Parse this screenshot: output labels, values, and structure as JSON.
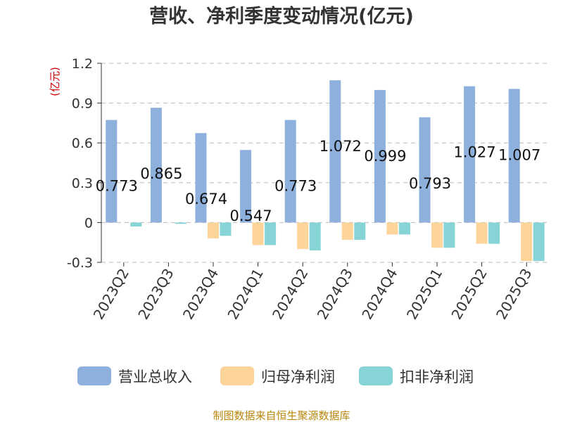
{
  "chart_data": {
    "type": "bar",
    "title": "营收、净利季度变动情况(亿元)",
    "unit_label": "(亿元)",
    "categories": [
      "2023Q2",
      "2023Q3",
      "2023Q4",
      "2024Q1",
      "2024Q2",
      "2024Q3",
      "2024Q4",
      "2025Q1",
      "2025Q2",
      "2025Q3"
    ],
    "ylim": [
      -0.3,
      1.2
    ],
    "yticks": [
      "1.2",
      "0.9",
      "0.6",
      "0.3",
      "0",
      "-0.3"
    ],
    "ytick_values": [
      1.2,
      0.9,
      0.6,
      0.3,
      0,
      -0.3
    ],
    "grid": true,
    "legend_position": "bottom",
    "series": [
      {
        "name": "营业总收入",
        "color": "#8eb0dc",
        "values": [
          0.773,
          0.865,
          0.674,
          0.547,
          0.773,
          1.072,
          0.999,
          0.793,
          1.027,
          1.007
        ],
        "labels": [
          "0.773",
          "0.865",
          "0.674",
          "0.547",
          "0.773",
          "1.072",
          "0.999",
          "0.793",
          "1.027",
          "1.007"
        ]
      },
      {
        "name": "归母净利润",
        "color": "#fdd49a",
        "values": [
          0.0,
          0.0,
          -0.12,
          -0.17,
          -0.2,
          -0.13,
          -0.09,
          -0.19,
          -0.16,
          -0.29
        ]
      },
      {
        "name": "扣非净利润",
        "color": "#87d4d6",
        "values": [
          -0.03,
          -0.01,
          -0.1,
          -0.17,
          -0.21,
          -0.13,
          -0.09,
          -0.19,
          -0.16,
          -0.29
        ]
      }
    ]
  },
  "footer": {
    "source": "制图数据来自恒生聚源数据库"
  }
}
